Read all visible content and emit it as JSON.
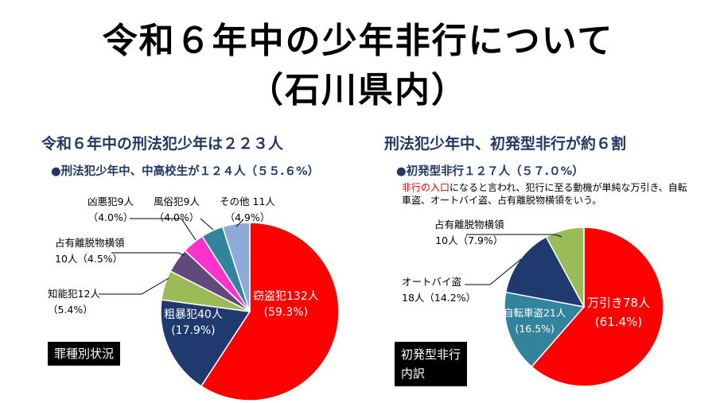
{
  "title_line1": "令和６年中の少年非行について",
  "title_line2": "（石川県内）",
  "left": {
    "header": "令和６年中の刑法犯少年は２２３人",
    "subheader": "●刑法犯少年中、中高校生が１２４人（５５.６%）",
    "box_label": "罪種別状況"
  },
  "right": {
    "header": "刑法犯少年中、初発型非行が約６割",
    "subheader": "●初発型非行１２７人（５７.０%）",
    "note_red": "非行の入口",
    "note_rest": "になると言われ、犯行に至る動機が単純な万引き、自転車盗、オートバイ盗、占有離脱物横領をいう。",
    "box_line1": "初発型非行",
    "box_line2": "内訳"
  },
  "chart_data": [
    {
      "type": "pie",
      "slices": [
        {
          "name": "窃盗犯",
          "count": "132人",
          "pct": "(59.3%)",
          "value": 132,
          "color": "#ff0000"
        },
        {
          "name": "粗暴犯",
          "count": "40人",
          "pct": "(17.9%)",
          "value": 40,
          "color": "#1f3a6e"
        },
        {
          "name": "知能犯",
          "count": "12人",
          "pct": "（5.4%）",
          "value": 12,
          "color": "#9bbb59"
        },
        {
          "name": "占有離脱物横領",
          "count": "10人（4.5%）",
          "value": 10,
          "color": "#604a7b"
        },
        {
          "name": "凶悪犯",
          "count": "9人",
          "pct": "（4.0%）",
          "value": 9,
          "color": "#ff33cc"
        },
        {
          "name": "風俗犯",
          "count": "9人",
          "pct": "（4.0%）",
          "value": 9,
          "color": "#31849b"
        },
        {
          "name": "その他",
          "count": "11人",
          "pct": "（4.9%）",
          "value": 11,
          "color": "#8eaadb"
        }
      ]
    },
    {
      "type": "pie",
      "slices": [
        {
          "name": "万引き",
          "count": "78人",
          "pct": "(61.4%)",
          "value": 78,
          "color": "#ff0000"
        },
        {
          "name": "自転車盗",
          "count": "21人",
          "pct": "(16.5%)",
          "value": 21,
          "color": "#31849b"
        },
        {
          "name": "オートバイ盗",
          "count": "18人（14.2%）",
          "value": 18,
          "color": "#1f3a6e"
        },
        {
          "name": "占有離脱物横領",
          "count": "10人（7.9%）",
          "value": 10,
          "color": "#9bbb59"
        }
      ]
    }
  ]
}
